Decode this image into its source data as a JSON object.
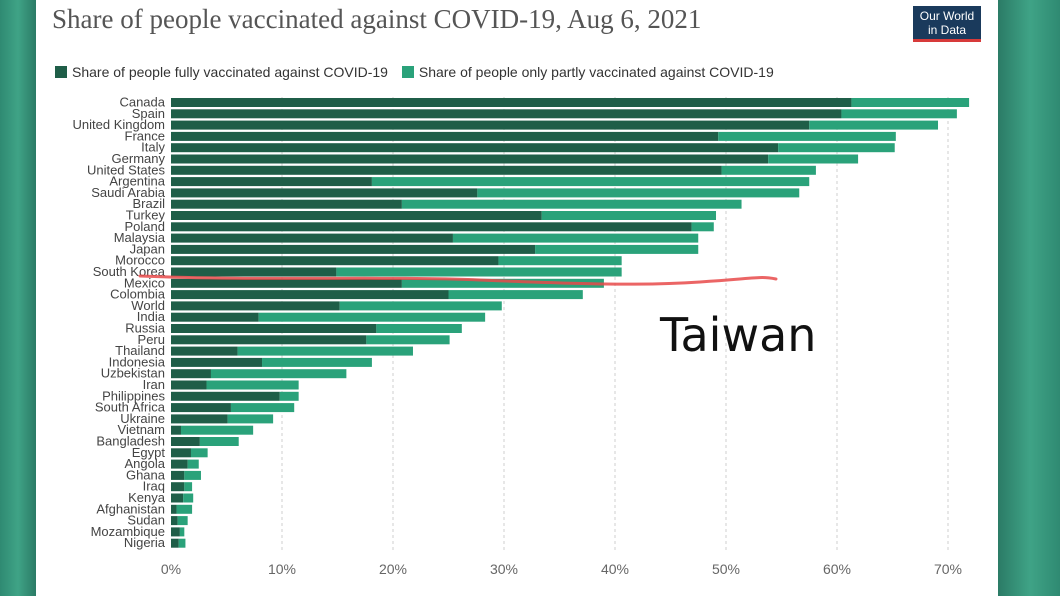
{
  "header": {
    "title": "Share of people vaccinated against COVID-19, Aug 6, 2021",
    "logo_line1": "Our World",
    "logo_line2": "in Data"
  },
  "colors": {
    "full": "#1f5e48",
    "partial": "#2aa27a",
    "grid": "#cfcfcf",
    "annotation_line": "#e84a4a"
  },
  "chart_data": {
    "type": "bar",
    "orientation": "horizontal",
    "stacked": true,
    "title": "Share of people vaccinated against COVID-19, Aug 6, 2021",
    "xlim": [
      0,
      70
    ],
    "ticks": [
      "0%",
      "10%",
      "20%",
      "30%",
      "40%",
      "50%",
      "60%",
      "70%"
    ],
    "tick_values": [
      0,
      10,
      20,
      30,
      40,
      50,
      60,
      70
    ],
    "grid": true,
    "legend_position": "top-left",
    "categories": [
      "Canada",
      "Spain",
      "United Kingdom",
      "France",
      "Italy",
      "Germany",
      "United States",
      "Argentina",
      "Saudi Arabia",
      "Brazil",
      "Turkey",
      "Poland",
      "Malaysia",
      "Japan",
      "Morocco",
      "South Korea",
      "Mexico",
      "Colombia",
      "World",
      "India",
      "Russia",
      "Peru",
      "Thailand",
      "Indonesia",
      "Uzbekistan",
      "Iran",
      "Philippines",
      "South Africa",
      "Ukraine",
      "Vietnam",
      "Bangladesh",
      "Egypt",
      "Angola",
      "Ghana",
      "Iraq",
      "Kenya",
      "Afghanistan",
      "Sudan",
      "Mozambique",
      "Nigeria"
    ],
    "series": [
      {
        "name": "Share of people fully vaccinated against COVID-19",
        "values": [
          61.3,
          60.4,
          57.5,
          49.3,
          54.7,
          53.8,
          49.6,
          18.1,
          27.6,
          20.8,
          33.4,
          46.9,
          25.4,
          32.8,
          29.5,
          14.9,
          20.8,
          25.0,
          15.2,
          7.9,
          18.5,
          17.6,
          6.0,
          8.2,
          3.6,
          3.2,
          9.8,
          5.4,
          5.1,
          0.9,
          2.6,
          1.8,
          1.5,
          1.2,
          1.2,
          1.1,
          0.5,
          0.6,
          0.8,
          0.7
        ]
      },
      {
        "name": "Share of people only partly vaccinated against COVID-19",
        "values": [
          10.6,
          10.4,
          11.6,
          16.0,
          10.5,
          8.1,
          8.5,
          39.4,
          29.0,
          30.6,
          15.7,
          2.0,
          22.1,
          14.7,
          11.1,
          25.7,
          18.2,
          12.1,
          14.6,
          20.4,
          7.7,
          7.5,
          15.8,
          9.9,
          12.2,
          8.3,
          1.7,
          5.7,
          4.1,
          6.5,
          3.5,
          1.5,
          1.0,
          1.5,
          0.7,
          0.9,
          1.4,
          0.9,
          0.4,
          0.6
        ]
      }
    ],
    "annotations": [
      "Taiwan"
    ]
  }
}
